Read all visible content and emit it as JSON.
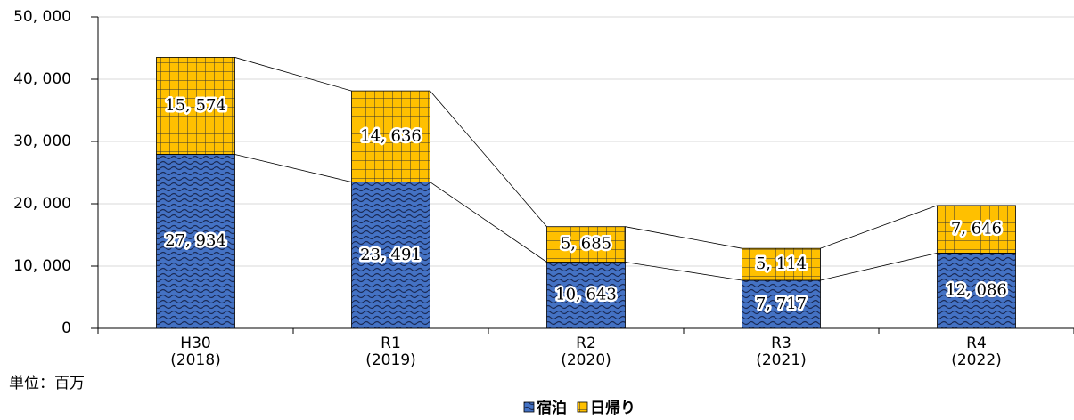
{
  "chart_data": {
    "type": "stacked_bar",
    "categories": [
      [
        "H30",
        "(2018)"
      ],
      [
        "R1",
        "(2019)"
      ],
      [
        "R2",
        "(2020)"
      ],
      [
        "R3",
        "(2021)"
      ],
      [
        "R4",
        "(2022)"
      ]
    ],
    "series": [
      {
        "name": "宿泊",
        "color": "#4472c4",
        "values": [
          27934,
          23491,
          10643,
          7717,
          12086
        ],
        "value_labels": [
          "27, 934",
          "23, 491",
          "10, 643",
          "7, 717",
          "12, 086"
        ]
      },
      {
        "name": "日帰り",
        "color": "#ffc000",
        "values": [
          15574,
          14636,
          5685,
          5114,
          7646
        ],
        "value_labels": [
          "15, 574",
          "14, 636",
          "5, 685",
          "5, 114",
          "7, 646"
        ]
      }
    ],
    "ylim": [
      0,
      50000
    ],
    "yticks": [
      0,
      {
        "value": 10000,
        "label": "10, 000"
      },
      {
        "value": 20000,
        "label": "20, 000"
      },
      {
        "value": 30000,
        "label": "30, 000"
      },
      {
        "value": 40000,
        "label": "40, 000"
      },
      {
        "value": 50000,
        "label": "50, 000"
      }
    ],
    "grid": true,
    "unit_note": "単位：百万",
    "legend": "bottom"
  }
}
